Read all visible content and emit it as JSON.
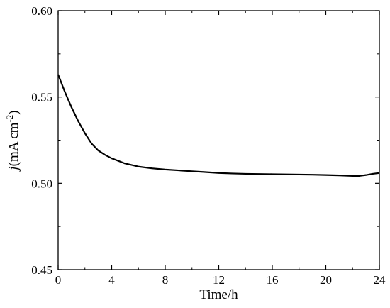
{
  "chart_data": {
    "type": "line",
    "title": "",
    "xlabel": "Time/h",
    "ylabel_italic": "j",
    "ylabel_unit_prefix": "(mA cm",
    "ylabel_exponent": "-2",
    "ylabel_unit_suffix": ")",
    "xlim": [
      0,
      24
    ],
    "ylim": [
      0.45,
      0.6
    ],
    "x_ticks": [
      0,
      4,
      8,
      12,
      16,
      20,
      24
    ],
    "x_tick_labels": [
      "0",
      "4",
      "8",
      "12",
      "16",
      "20",
      "24"
    ],
    "y_ticks": [
      0.45,
      0.5,
      0.55,
      0.6
    ],
    "y_tick_labels": [
      "0.45",
      "0.50",
      "0.55",
      "0.60"
    ],
    "grid": false,
    "legend": "none",
    "line_color": "#000000",
    "series": [
      {
        "x": [
          0,
          0.5,
          1,
          1.5,
          2,
          2.5,
          3,
          3.5,
          4,
          5,
          6,
          7,
          8,
          9,
          10,
          11,
          12,
          13,
          14,
          15,
          16,
          17,
          18,
          19,
          20,
          21,
          22,
          22.5,
          23,
          23.5,
          24
        ],
        "values": [
          0.563,
          0.553,
          0.544,
          0.536,
          0.529,
          0.523,
          0.519,
          0.5165,
          0.5145,
          0.5115,
          0.5097,
          0.5087,
          0.508,
          0.5075,
          0.507,
          0.5065,
          0.506,
          0.5057,
          0.5055,
          0.5054,
          0.5053,
          0.5052,
          0.5051,
          0.505,
          0.5048,
          0.5046,
          0.5043,
          0.5043,
          0.5048,
          0.5055,
          0.506
        ]
      }
    ]
  }
}
